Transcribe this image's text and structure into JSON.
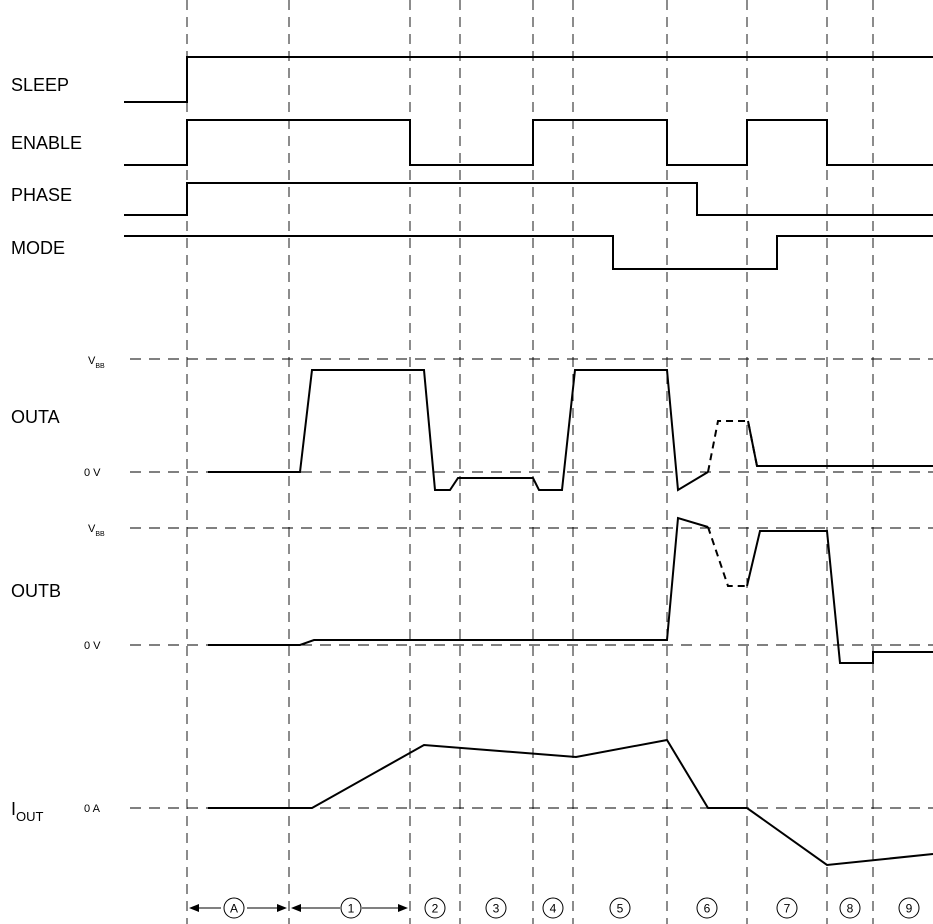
{
  "signals": {
    "sleep": "SLEEP",
    "enable": "ENABLE",
    "phase": "PHASE",
    "mode": "MODE",
    "outa": "OUTA",
    "outb": "OUTB",
    "iout_main": "I",
    "iout_sub": "OUT"
  },
  "levels": {
    "v": "V",
    "bb": "BB",
    "zero_v": "0 V",
    "zero_a": "0 A"
  },
  "markers": [
    "A",
    "1",
    "2",
    "3",
    "4",
    "5",
    "6",
    "7",
    "8",
    "9"
  ]
}
